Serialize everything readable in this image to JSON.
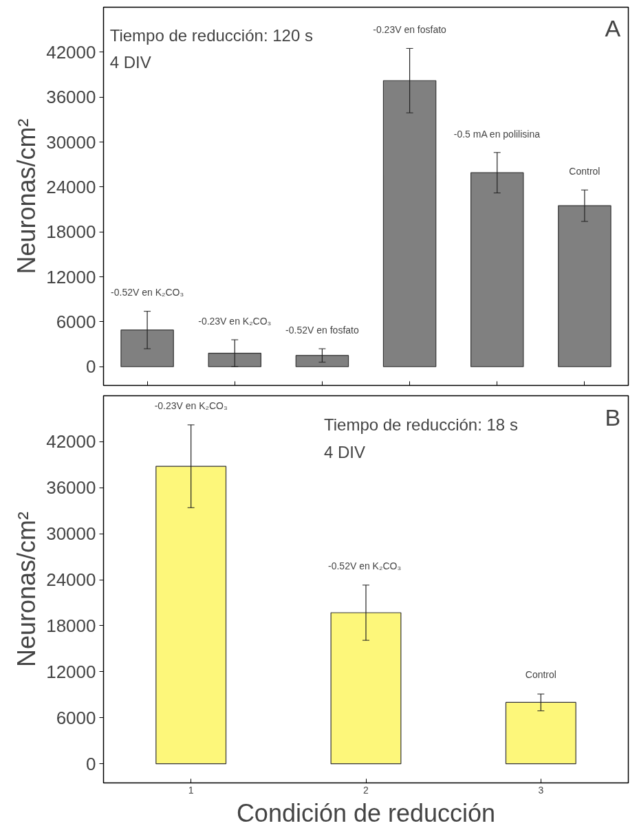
{
  "chart_data": [
    {
      "type": "bar",
      "title": "A",
      "ylabel": "Neuronas/cm²",
      "categories": [
        null,
        null,
        null,
        null,
        null,
        null
      ],
      "tick_labels": "y",
      "ylim": [
        -2500,
        48000
      ],
      "yticks": [
        0,
        6000,
        12000,
        18000,
        24000,
        30000,
        36000,
        42000
      ],
      "grid": false,
      "series": [
        {
          "color": "#808080",
          "values": [
            4900,
            1800,
            1500,
            38200,
            25900,
            21500
          ],
          "errors": [
            2500,
            1800,
            900,
            4300,
            2700,
            2100
          ]
        }
      ],
      "annotations": [
        "Tiempo de reducción: 120 s",
        "4 DIV",
        "-0.52V en K₂CO₃",
        "-0.23V en K₂CO₃",
        "-0.52V en fosfato",
        "-0.23V en fosfato",
        "-0.5 mA en polilisina",
        "Control"
      ]
    },
    {
      "type": "bar",
      "title": "B",
      "xlabel": "Condición de reducción",
      "ylabel": "Neuronas/cm²",
      "x": [
        1,
        2,
        3
      ],
      "xlim": [
        0.5,
        3.5
      ],
      "xticks": [
        1,
        2,
        3
      ],
      "ylim": [
        -2500,
        48000
      ],
      "yticks": [
        0,
        6000,
        12000,
        18000,
        24000,
        30000,
        36000,
        42000
      ],
      "grid": false,
      "series": [
        {
          "color": "#fdf77a",
          "values": [
            38800,
            19700,
            8000
          ],
          "errors": [
            5400,
            3600,
            1100
          ]
        }
      ],
      "annotations": [
        "Tiempo de reducción: 18 s",
        "4 DIV",
        "-0.23V en K₂CO₃",
        "-0.52V  en K₂CO₃",
        "Control"
      ]
    }
  ]
}
